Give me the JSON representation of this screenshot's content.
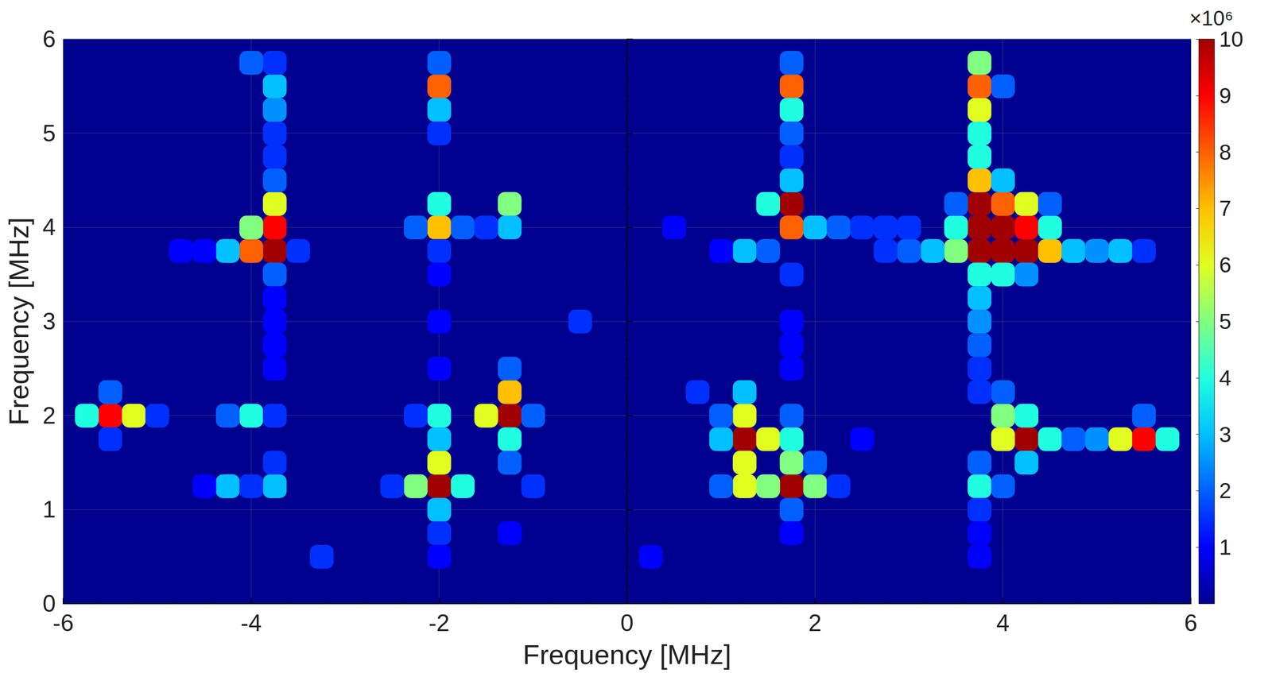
{
  "chart_data": {
    "type": "heatmap",
    "x_label": "Frequency [MHz]",
    "y_label": "Frequency [MHz]",
    "xlim": [
      -6,
      6
    ],
    "xticks": [
      -6,
      -4,
      -2,
      0,
      2,
      4,
      6
    ],
    "ylim": [
      0,
      6
    ],
    "yticks": [
      0,
      1,
      2,
      3,
      4,
      5,
      6
    ],
    "grid": true,
    "cells": [
      [
        -5.5,
        2.0,
        9
      ],
      [
        -5.25,
        2.0,
        6
      ],
      [
        -5.75,
        2.0,
        4
      ],
      [
        -5.5,
        2.25,
        2
      ],
      [
        -5.5,
        1.75,
        1.5
      ],
      [
        -5.0,
        2.0,
        1.5
      ],
      [
        -4.0,
        2.0,
        4
      ],
      [
        -4.25,
        2.0,
        2
      ],
      [
        -3.75,
        2.0,
        1.5
      ],
      [
        -4.25,
        1.25,
        3
      ],
      [
        -3.75,
        1.25,
        3
      ],
      [
        -4.0,
        1.25,
        1.5
      ],
      [
        -4.5,
        1.25,
        1
      ],
      [
        -3.75,
        1.5,
        1.5
      ],
      [
        -3.75,
        3.75,
        10
      ],
      [
        -4.0,
        3.75,
        8
      ],
      [
        -3.75,
        4.0,
        9
      ],
      [
        -4.0,
        4.0,
        5
      ],
      [
        -4.25,
        3.75,
        3
      ],
      [
        -3.75,
        4.25,
        6
      ],
      [
        -3.75,
        3.5,
        2
      ],
      [
        -3.75,
        4.5,
        2
      ],
      [
        -3.75,
        4.75,
        1.5
      ],
      [
        -3.75,
        5.0,
        1.5
      ],
      [
        -3.75,
        5.25,
        2.5
      ],
      [
        -3.75,
        5.5,
        3
      ],
      [
        -3.75,
        5.75,
        1.5
      ],
      [
        -3.75,
        3.25,
        1
      ],
      [
        -3.75,
        3.0,
        1
      ],
      [
        -4.5,
        3.75,
        1
      ],
      [
        -3.5,
        3.75,
        1.5
      ],
      [
        -3.75,
        2.75,
        1
      ],
      [
        -3.75,
        2.5,
        1
      ],
      [
        -2.0,
        5.5,
        8
      ],
      [
        -2.0,
        5.25,
        3
      ],
      [
        -2.0,
        5.75,
        2
      ],
      [
        -2.0,
        5.0,
        1.5
      ],
      [
        -2.0,
        4.0,
        7
      ],
      [
        -2.0,
        4.25,
        4
      ],
      [
        -1.75,
        4.0,
        2
      ],
      [
        -1.25,
        4.25,
        5
      ],
      [
        -1.25,
        4.0,
        3
      ],
      [
        -1.5,
        4.0,
        1.5
      ],
      [
        -2.25,
        4.0,
        2
      ],
      [
        -2.0,
        3.75,
        1.5
      ],
      [
        -2.0,
        3.5,
        1
      ],
      [
        -2.0,
        2.0,
        4
      ],
      [
        -2.25,
        2.0,
        1.5
      ],
      [
        -1.25,
        2.0,
        10
      ],
      [
        -1.5,
        2.0,
        6
      ],
      [
        -1.25,
        2.25,
        7
      ],
      [
        -1.25,
        1.75,
        4
      ],
      [
        -1.0,
        2.0,
        2
      ],
      [
        -1.25,
        2.5,
        2
      ],
      [
        -1.25,
        1.5,
        2
      ],
      [
        -2.0,
        1.25,
        10
      ],
      [
        -2.0,
        1.5,
        6
      ],
      [
        -2.25,
        1.25,
        5
      ],
      [
        -1.75,
        1.25,
        4
      ],
      [
        -2.0,
        1.0,
        3
      ],
      [
        -2.0,
        1.75,
        3
      ],
      [
        -2.0,
        0.75,
        1.5
      ],
      [
        -2.0,
        0.5,
        1
      ],
      [
        -2.0,
        2.5,
        1
      ],
      [
        -2.0,
        3.0,
        1
      ],
      [
        -1.0,
        1.25,
        1.5
      ],
      [
        -2.5,
        1.25,
        1.5
      ],
      [
        1.25,
        1.75,
        10
      ],
      [
        1.25,
        2.0,
        6
      ],
      [
        1.5,
        1.75,
        6
      ],
      [
        1.0,
        1.75,
        3
      ],
      [
        1.75,
        1.25,
        10
      ],
      [
        2.0,
        1.25,
        5
      ],
      [
        1.5,
        1.25,
        5
      ],
      [
        1.25,
        1.25,
        6
      ],
      [
        1.75,
        1.5,
        5
      ],
      [
        1.75,
        1.75,
        4
      ],
      [
        1.25,
        1.5,
        6
      ],
      [
        1.0,
        1.25,
        2
      ],
      [
        1.25,
        2.25,
        3
      ],
      [
        1.0,
        2.0,
        2
      ],
      [
        2.0,
        1.5,
        2
      ],
      [
        1.75,
        1.0,
        2
      ],
      [
        1.75,
        2.0,
        2
      ],
      [
        2.25,
        1.25,
        1.5
      ],
      [
        1.75,
        0.75,
        1
      ],
      [
        1.75,
        2.5,
        1
      ],
      [
        1.75,
        4.25,
        10
      ],
      [
        1.75,
        4.0,
        8
      ],
      [
        1.5,
        4.25,
        4
      ],
      [
        2.0,
        4.0,
        3
      ],
      [
        1.75,
        4.5,
        3
      ],
      [
        1.25,
        3.75,
        3
      ],
      [
        1.5,
        3.75,
        2
      ],
      [
        2.25,
        4.0,
        2
      ],
      [
        2.5,
        4.0,
        1.5
      ],
      [
        1.75,
        5.5,
        8
      ],
      [
        1.75,
        5.25,
        4
      ],
      [
        1.75,
        5.75,
        2
      ],
      [
        1.75,
        5.0,
        2
      ],
      [
        1.75,
        4.75,
        1.5
      ],
      [
        1.75,
        3.5,
        1.5
      ],
      [
        1.75,
        3.0,
        1
      ],
      [
        1.75,
        2.75,
        1
      ],
      [
        1.0,
        3.75,
        1
      ],
      [
        0.5,
        4.0,
        1
      ],
      [
        3.75,
        3.75,
        10
      ],
      [
        4.0,
        3.75,
        10
      ],
      [
        4.25,
        3.75,
        10
      ],
      [
        3.75,
        4.0,
        10
      ],
      [
        4.0,
        4.0,
        10
      ],
      [
        4.25,
        4.0,
        9
      ],
      [
        3.75,
        4.25,
        10
      ],
      [
        4.0,
        4.25,
        8
      ],
      [
        4.25,
        4.25,
        6
      ],
      [
        3.75,
        4.5,
        7
      ],
      [
        4.5,
        3.75,
        7
      ],
      [
        4.5,
        4.0,
        4
      ],
      [
        3.5,
        3.75,
        5
      ],
      [
        3.5,
        4.0,
        4
      ],
      [
        4.0,
        3.5,
        4
      ],
      [
        3.75,
        3.5,
        4
      ],
      [
        4.25,
        3.5,
        2.5
      ],
      [
        3.75,
        4.75,
        4
      ],
      [
        3.75,
        5.0,
        4
      ],
      [
        3.75,
        5.25,
        6
      ],
      [
        3.75,
        5.5,
        8
      ],
      [
        3.75,
        5.75,
        5
      ],
      [
        4.0,
        5.5,
        2
      ],
      [
        3.75,
        3.25,
        3
      ],
      [
        3.75,
        3.0,
        2.5
      ],
      [
        3.75,
        2.75,
        2
      ],
      [
        3.75,
        2.5,
        1.5
      ],
      [
        3.25,
        3.75,
        3
      ],
      [
        3.0,
        3.75,
        2
      ],
      [
        4.75,
        3.75,
        3
      ],
      [
        5.0,
        3.75,
        2.5
      ],
      [
        5.25,
        3.75,
        3
      ],
      [
        5.5,
        3.75,
        1.5
      ],
      [
        2.75,
        3.75,
        1.5
      ],
      [
        4.0,
        4.5,
        3
      ],
      [
        3.5,
        4.25,
        2
      ],
      [
        4.5,
        4.25,
        2
      ],
      [
        3.0,
        4.0,
        1.5
      ],
      [
        2.75,
        4.0,
        1.5
      ],
      [
        4.25,
        1.75,
        10
      ],
      [
        4.0,
        1.75,
        6
      ],
      [
        4.5,
        1.75,
        4
      ],
      [
        4.25,
        2.0,
        4
      ],
      [
        4.0,
        2.0,
        5
      ],
      [
        4.25,
        1.5,
        3
      ],
      [
        3.75,
        1.25,
        4
      ],
      [
        3.75,
        1.5,
        2
      ],
      [
        3.75,
        1.0,
        1.5
      ],
      [
        4.75,
        1.75,
        2
      ],
      [
        5.0,
        1.75,
        2.5
      ],
      [
        5.25,
        1.75,
        6
      ],
      [
        5.5,
        1.75,
        9
      ],
      [
        5.75,
        1.75,
        4
      ],
      [
        5.5,
        2.0,
        2
      ],
      [
        4.0,
        2.25,
        2
      ],
      [
        3.75,
        2.25,
        1.5
      ],
      [
        4.0,
        1.25,
        2
      ],
      [
        3.75,
        0.75,
        1
      ],
      [
        3.75,
        0.5,
        1
      ],
      [
        -3.25,
        0.5,
        1.5
      ],
      [
        -0.5,
        3.0,
        1.5
      ],
      [
        0.25,
        0.5,
        1
      ],
      [
        -1.25,
        0.75,
        1
      ],
      [
        0.75,
        2.25,
        1.5
      ],
      [
        2.5,
        1.75,
        1
      ],
      [
        -4.75,
        3.75,
        1
      ],
      [
        -4.0,
        5.75,
        2
      ]
    ],
    "colorbar": {
      "range": [
        0,
        10
      ],
      "ticks": [
        1,
        2,
        3,
        4,
        5,
        6,
        7,
        8,
        9,
        10
      ],
      "label": "×10⁶"
    }
  }
}
